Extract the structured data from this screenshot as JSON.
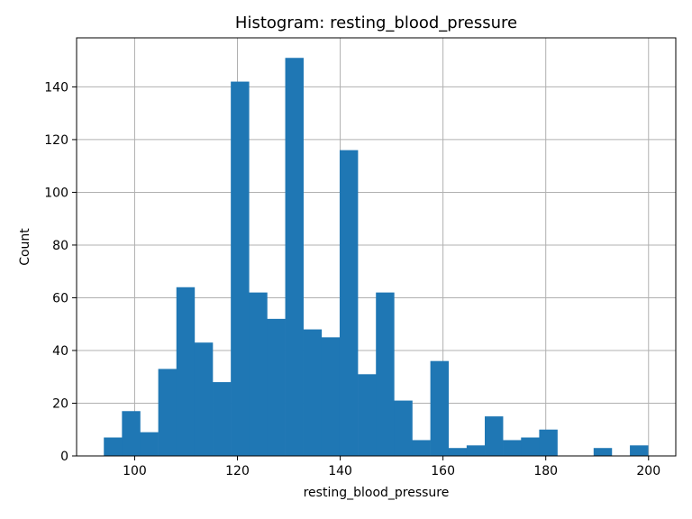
{
  "chart_data": {
    "type": "bar",
    "title": "Histogram: resting_blood_pressure",
    "xlabel": "resting_blood_pressure",
    "ylabel": "Count",
    "xlim": [
      88.7,
      205.3
    ],
    "ylim": [
      0,
      158.6
    ],
    "grid": true,
    "bar_color": "#1f77b4",
    "x_ticks": [
      100,
      120,
      140,
      160,
      180,
      200
    ],
    "y_ticks": [
      0,
      20,
      40,
      60,
      80,
      100,
      120,
      140
    ],
    "bin_width": 3.53,
    "bin_edges_start": 94,
    "values": [
      7,
      17,
      9,
      33,
      64,
      43,
      28,
      142,
      62,
      52,
      151,
      48,
      45,
      116,
      31,
      62,
      21,
      6,
      36,
      3,
      4,
      15,
      6,
      7,
      10,
      0,
      0,
      3,
      0,
      4
    ]
  }
}
